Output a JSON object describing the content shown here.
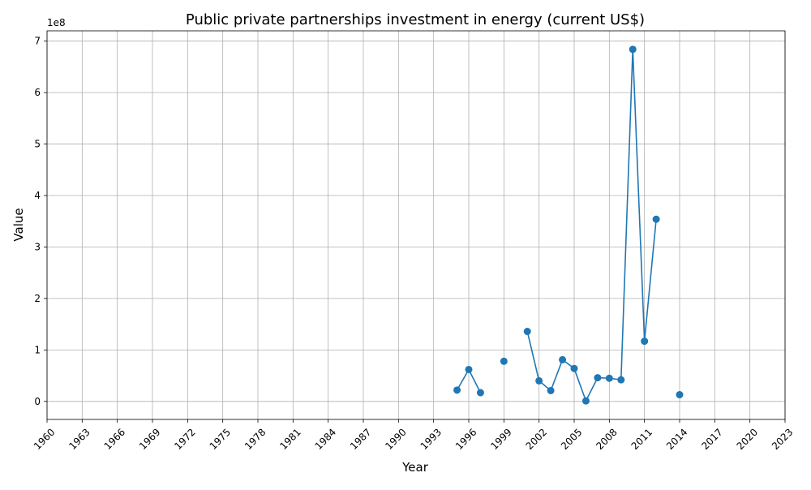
{
  "chart_data": {
    "type": "line",
    "title": "Public private partnerships investment in energy (current US$)",
    "xlabel": "Year",
    "ylabel": "Value",
    "y_offset_label": "1e8",
    "xlim": [
      1960,
      2023
    ],
    "ylim": [
      -35000000,
      720000000
    ],
    "x_ticks": [
      1960,
      1963,
      1966,
      1969,
      1972,
      1975,
      1978,
      1981,
      1984,
      1987,
      1990,
      1993,
      1996,
      1999,
      2002,
      2005,
      2008,
      2011,
      2014,
      2017,
      2020,
      2023
    ],
    "y_ticks": [
      0,
      100000000,
      200000000,
      300000000,
      400000000,
      500000000,
      600000000,
      700000000
    ],
    "y_tick_labels": [
      "0",
      "1",
      "2",
      "3",
      "4",
      "5",
      "6",
      "7"
    ],
    "grid": true,
    "legend": "none",
    "series": [
      {
        "color": "#1f77b4",
        "points": [
          {
            "x": 1995,
            "y": 22000000
          },
          {
            "x": 1996,
            "y": 62000000
          },
          {
            "x": 1997,
            "y": 17000000
          },
          {
            "x": 1998,
            "y": null
          },
          {
            "x": 1999,
            "y": 78000000
          },
          {
            "x": 2000,
            "y": null
          },
          {
            "x": 2001,
            "y": 136000000
          },
          {
            "x": 2002,
            "y": 40000000
          },
          {
            "x": 2003,
            "y": 21000000
          },
          {
            "x": 2004,
            "y": 81000000
          },
          {
            "x": 2005,
            "y": 64000000
          },
          {
            "x": 2006,
            "y": 1000000
          },
          {
            "x": 2007,
            "y": 46000000
          },
          {
            "x": 2008,
            "y": 45000000
          },
          {
            "x": 2009,
            "y": 42000000
          },
          {
            "x": 2010,
            "y": 684000000
          },
          {
            "x": 2011,
            "y": 117000000
          },
          {
            "x": 2012,
            "y": 354000000
          },
          {
            "x": 2013,
            "y": null
          },
          {
            "x": 2014,
            "y": 13000000
          }
        ]
      }
    ]
  }
}
